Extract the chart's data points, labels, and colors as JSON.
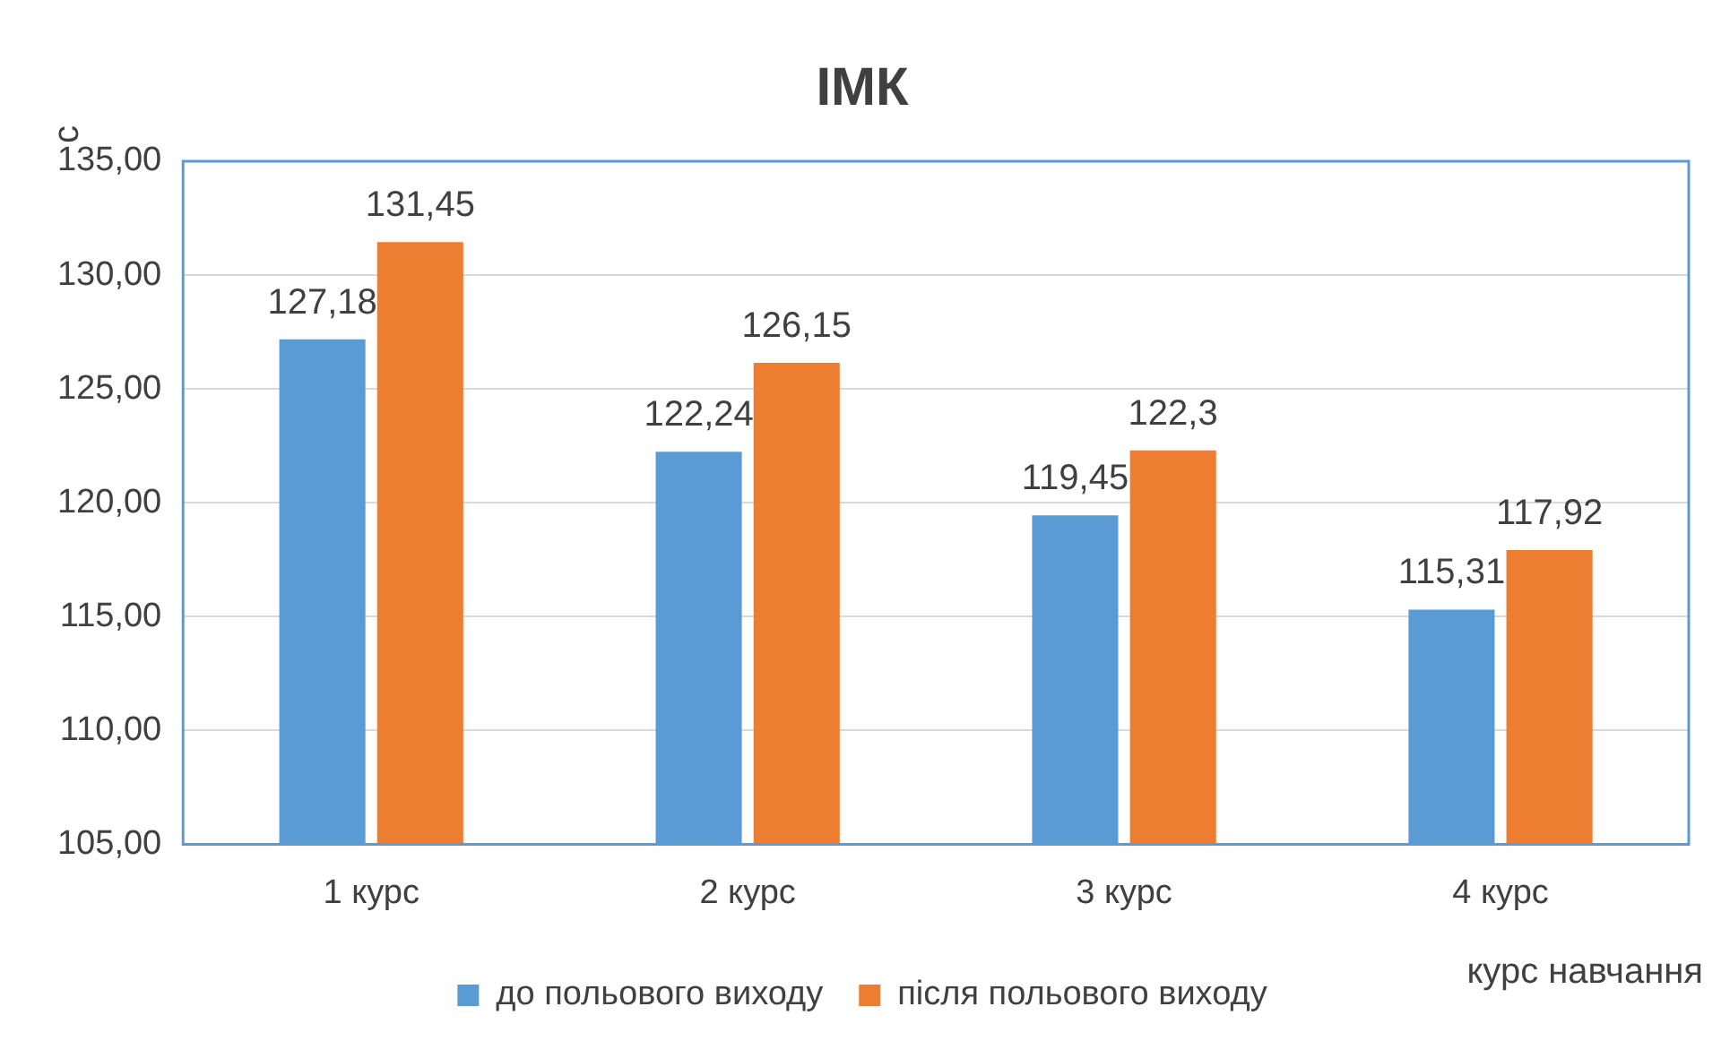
{
  "chart_data": {
    "type": "bar",
    "title": "ІМК",
    "ylabel": "с",
    "xlabel": "курс навчання",
    "categories": [
      "1 курс",
      "2 курс",
      "3 курс",
      "4 курс"
    ],
    "series": [
      {
        "name": "до польового виходу",
        "color": "#5b9bd5",
        "values": [
          127.18,
          122.24,
          119.45,
          115.31
        ],
        "value_labels": [
          "127,18",
          "122,24",
          "119,45",
          "115,31"
        ]
      },
      {
        "name": "після польового виходу",
        "color": "#ed7d31",
        "values": [
          131.45,
          126.15,
          122.3,
          117.92
        ],
        "value_labels": [
          "131,45",
          "126,15",
          "122,3",
          "117,92"
        ]
      }
    ],
    "ylim": [
      105,
      135
    ],
    "yticks": [
      {
        "value": 105,
        "label": "105,00"
      },
      {
        "value": 110,
        "label": "110,00"
      },
      {
        "value": 115,
        "label": "115,00"
      },
      {
        "value": 120,
        "label": "120,00"
      },
      {
        "value": 125,
        "label": "125,00"
      },
      {
        "value": 130,
        "label": "130,00"
      },
      {
        "value": 135,
        "label": "135,00"
      }
    ],
    "grid": "y",
    "legend": "bottom"
  }
}
